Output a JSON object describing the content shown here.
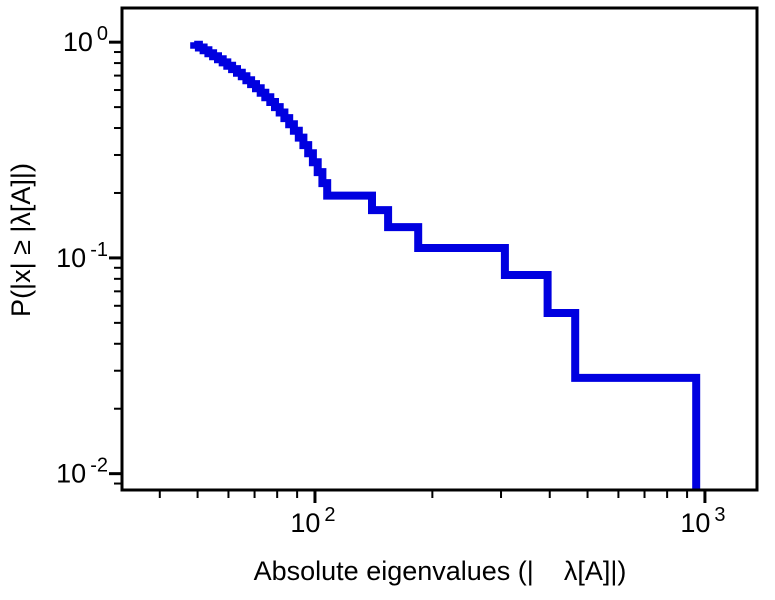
{
  "page": {
    "background_color": "#ffffff"
  },
  "chart_data": {
    "type": "line",
    "subtype": "ccdf-step-log-log",
    "title": "",
    "xlabel_parts": [
      "Absolute eigenvalues (|",
      "λ[A]|)"
    ],
    "ylabel": "P(|x| ≥ |λ[A]|)",
    "x_scale": "log",
    "y_scale": "log",
    "xlim": [
      32,
      1360
    ],
    "ylim": [
      0.0084,
      1.44
    ],
    "grid": false,
    "legend": null,
    "line_color": "#0000e0",
    "line_width": 8,
    "axis_color": "#000000",
    "x_ticks": [
      {
        "base": "10",
        "exp": "2",
        "value": 100
      },
      {
        "base": "10",
        "exp": "3",
        "value": 1000
      }
    ],
    "y_ticks": [
      {
        "base": "10",
        "exp": "0",
        "value": 1
      },
      {
        "base": "10",
        "exp": "-1",
        "value": 0.1
      },
      {
        "base": "10",
        "exp": "-2",
        "value": 0.01
      }
    ],
    "n_points": 36,
    "ccdf_rule": "P(|x| >= v) = (N - rank(v)) / N, curve steps down by 1/36 at each sorted eigenvalue",
    "eigenvalues_sorted": [
      49.0,
      50.4,
      51.8,
      53.3,
      54.8,
      56.4,
      58.0,
      59.6,
      61.3,
      63.1,
      64.9,
      66.7,
      68.6,
      70.6,
      72.6,
      74.6,
      76.8,
      79.0,
      81.2,
      83.5,
      85.9,
      88.3,
      90.9,
      93.4,
      96.1,
      98.8,
      101.6,
      104.5,
      107.5,
      140,
      154,
      184,
      307,
      395,
      465,
      950
    ],
    "plateau_levels_read_from_plot": [
      0.194,
      0.167,
      0.139,
      0.111,
      0.083,
      0.056,
      0.028
    ]
  }
}
